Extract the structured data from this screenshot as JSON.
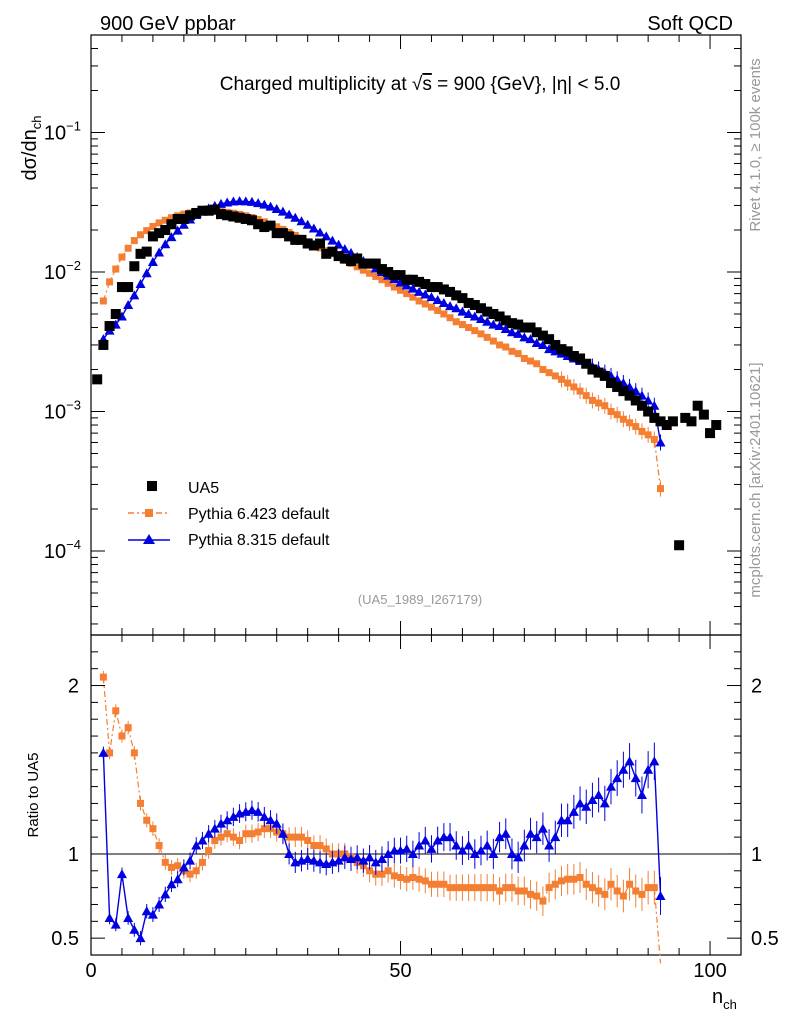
{
  "header": {
    "left": "900 GeV ppbar",
    "right": "Soft QCD"
  },
  "side_labels": {
    "rivet": "Rivet 4.1.0, ≥ 100k events",
    "mcplots": "mcplots.cern.ch [arXiv:2401.10621]"
  },
  "colors": {
    "data": "#000000",
    "pythia6": "#f47f32",
    "pythia8": "#0000e0"
  },
  "chart_data": {
    "type": "scatter",
    "title": "Charged multiplicity at √s = 900 {GeV}, |η| < 5.0",
    "title_parts": {
      "pre": "Charged multiplicity at ",
      "root": "√",
      "s": "s",
      "post": " = 900 {GeV}, |η| < 5.0"
    },
    "analysis_id": "(UA5_1989_I267179)",
    "xlabel": {
      "main": "n",
      "sub": "ch"
    },
    "ylabel": {
      "main": "dσ/dn",
      "sub": "ch"
    },
    "ratio_ylabel": "Ratio to UA5",
    "xlim": [
      0,
      105
    ],
    "ylim_log": [
      2.5e-05,
      0.5
    ],
    "ratio_ylim": [
      0.4,
      2.3
    ],
    "x_ticks": [
      0,
      50,
      100
    ],
    "x_tick_labels": [
      "0",
      "50",
      "100"
    ],
    "y_ticks": [
      {
        "value": 0.1,
        "base": "10",
        "exp": "−1"
      },
      {
        "value": 0.01,
        "base": "10",
        "exp": "−2"
      },
      {
        "value": 0.001,
        "base": "10",
        "exp": "−3"
      },
      {
        "value": 0.0001,
        "base": "10",
        "exp": "−4"
      }
    ],
    "ratio_ticks": [
      {
        "value": 2,
        "label": "2"
      },
      {
        "value": 1,
        "label": "1"
      },
      {
        "value": 0.5,
        "label": "0.5"
      }
    ],
    "legend": [
      {
        "key": "ua5",
        "label": "UA5"
      },
      {
        "key": "pythia6",
        "label": "Pythia 6.423 default"
      },
      {
        "key": "pythia8",
        "label": "Pythia 8.315 default"
      }
    ],
    "ua5": {
      "x": [
        1,
        2,
        3,
        4,
        5,
        6,
        7,
        8,
        9,
        10,
        11,
        12,
        13,
        14,
        15,
        16,
        17,
        18,
        19,
        20,
        21,
        22,
        23,
        24,
        25,
        26,
        27,
        28,
        29,
        30,
        31,
        32,
        33,
        34,
        35,
        36,
        37,
        38,
        39,
        40,
        41,
        42,
        43,
        44,
        45,
        46,
        47,
        48,
        49,
        50,
        51,
        52,
        53,
        54,
        55,
        56,
        57,
        58,
        59,
        60,
        61,
        62,
        63,
        64,
        65,
        66,
        67,
        68,
        69,
        70,
        71,
        72,
        73,
        74,
        75,
        76,
        77,
        78,
        79,
        80,
        81,
        82,
        83,
        84,
        85,
        86,
        87,
        88,
        89,
        90,
        91,
        92,
        93,
        94,
        95,
        96,
        97,
        98,
        99,
        100,
        101
      ],
      "y": [
        0.0017,
        0.003,
        0.0041,
        0.005,
        0.0078,
        0.0078,
        0.011,
        0.0135,
        0.014,
        0.018,
        0.019,
        0.02,
        0.022,
        0.024,
        0.024,
        0.0255,
        0.0265,
        0.0275,
        0.0275,
        0.028,
        0.026,
        0.0255,
        0.025,
        0.0245,
        0.024,
        0.0235,
        0.022,
        0.021,
        0.0215,
        0.019,
        0.019,
        0.018,
        0.017,
        0.017,
        0.016,
        0.0155,
        0.016,
        0.0135,
        0.014,
        0.013,
        0.0125,
        0.012,
        0.0125,
        0.0115,
        0.0115,
        0.0115,
        0.0105,
        0.01,
        0.0095,
        0.0095,
        0.0088,
        0.0088,
        0.0085,
        0.0082,
        0.0078,
        0.0078,
        0.0075,
        0.0072,
        0.0068,
        0.0065,
        0.006,
        0.0058,
        0.0055,
        0.0052,
        0.005,
        0.0048,
        0.0045,
        0.0043,
        0.0042,
        0.004,
        0.004,
        0.0037,
        0.0035,
        0.0033,
        0.003,
        0.0028,
        0.0027,
        0.0025,
        0.0024,
        0.0022,
        0.002,
        0.0019,
        0.0018,
        0.0016,
        0.0015,
        0.0014,
        0.0013,
        0.0012,
        0.0011,
        0.001,
        0.0009,
        0.00085,
        0.0008,
        0.00085,
        0.00011,
        0.0009,
        0.00085,
        0.0011,
        0.00095,
        0.0007,
        0.0008
      ]
    },
    "pythia6": {
      "x": [
        2,
        3,
        4,
        5,
        6,
        7,
        8,
        9,
        10,
        11,
        12,
        13,
        14,
        15,
        16,
        17,
        18,
        19,
        20,
        21,
        22,
        23,
        24,
        25,
        26,
        27,
        28,
        29,
        30,
        31,
        32,
        33,
        34,
        35,
        36,
        37,
        38,
        39,
        40,
        41,
        42,
        43,
        44,
        45,
        46,
        47,
        48,
        49,
        50,
        51,
        52,
        53,
        54,
        55,
        56,
        57,
        58,
        59,
        60,
        61,
        62,
        63,
        64,
        65,
        66,
        67,
        68,
        69,
        70,
        71,
        72,
        73,
        74,
        75,
        76,
        77,
        78,
        79,
        80,
        81,
        82,
        83,
        84,
        85,
        86,
        87,
        88,
        89,
        90,
        91,
        92
      ],
      "y": [
        0.0062,
        0.0085,
        0.0105,
        0.0128,
        0.0148,
        0.0168,
        0.0185,
        0.0198,
        0.0212,
        0.0225,
        0.0235,
        0.0245,
        0.0253,
        0.026,
        0.0265,
        0.0268,
        0.0271,
        0.0272,
        0.0272,
        0.0271,
        0.0268,
        0.0264,
        0.0259,
        0.0253,
        0.0246,
        0.0238,
        0.0229,
        0.022,
        0.0211,
        0.0202,
        0.0192,
        0.0183,
        0.0174,
        0.0165,
        0.0157,
        0.0149,
        0.0142,
        0.0135,
        0.0128,
        0.0121,
        0.0115,
        0.0109,
        0.0103,
        0.0098,
        0.0093,
        0.0088,
        0.0083,
        0.0078,
        0.0074,
        0.007,
        0.0066,
        0.0062,
        0.0059,
        0.0056,
        0.0053,
        0.005,
        0.0047,
        0.0044,
        0.0042,
        0.004,
        0.0038,
        0.0036,
        0.0034,
        0.0032,
        0.003,
        0.0029,
        0.0027,
        0.0026,
        0.0024,
        0.0023,
        0.0022,
        0.002,
        0.0019,
        0.0018,
        0.0017,
        0.0016,
        0.0015,
        0.0014,
        0.0013,
        0.0012,
        0.00115,
        0.0011,
        0.001,
        0.00095,
        0.00088,
        0.00083,
        0.00078,
        0.00072,
        0.00068,
        0.00063,
        0.00028
      ]
    },
    "pythia8": {
      "x": [
        2,
        3,
        4,
        5,
        6,
        7,
        8,
        9,
        10,
        11,
        12,
        13,
        14,
        15,
        16,
        17,
        18,
        19,
        20,
        21,
        22,
        23,
        24,
        25,
        26,
        27,
        28,
        29,
        30,
        31,
        32,
        33,
        34,
        35,
        36,
        37,
        38,
        39,
        40,
        41,
        42,
        43,
        44,
        45,
        46,
        47,
        48,
        49,
        50,
        51,
        52,
        53,
        54,
        55,
        56,
        57,
        58,
        59,
        60,
        61,
        62,
        63,
        64,
        65,
        66,
        67,
        68,
        69,
        70,
        71,
        72,
        73,
        74,
        75,
        76,
        77,
        78,
        79,
        80,
        81,
        82,
        83,
        84,
        85,
        86,
        87,
        88,
        89,
        90,
        91,
        92
      ],
      "y": [
        0.0033,
        0.0038,
        0.0042,
        0.0048,
        0.0058,
        0.0068,
        0.0082,
        0.0098,
        0.0118,
        0.0138,
        0.0158,
        0.0178,
        0.0198,
        0.0218,
        0.0238,
        0.0256,
        0.0272,
        0.0286,
        0.0298,
        0.0308,
        0.0315,
        0.032,
        0.0322,
        0.0321,
        0.0318,
        0.0312,
        0.0304,
        0.0294,
        0.0283,
        0.0271,
        0.0258,
        0.0245,
        0.0231,
        0.0218,
        0.0205,
        0.0192,
        0.018,
        0.0168,
        0.0157,
        0.0146,
        0.0137,
        0.0128,
        0.012,
        0.0113,
        0.0106,
        0.01,
        0.0094,
        0.0089,
        0.0084,
        0.008,
        0.0076,
        0.0072,
        0.0069,
        0.0066,
        0.0063,
        0.006,
        0.0057,
        0.0055,
        0.0052,
        0.005,
        0.0048,
        0.0046,
        0.0044,
        0.0042,
        0.0041,
        0.0039,
        0.0037,
        0.0036,
        0.0034,
        0.0033,
        0.0031,
        0.003,
        0.0028,
        0.0027,
        0.0026,
        0.0025,
        0.0024,
        0.0023,
        0.0022,
        0.0021,
        0.002,
        0.0019,
        0.0018,
        0.0017,
        0.0016,
        0.0015,
        0.0014,
        0.0013,
        0.0012,
        0.0011,
        0.0006
      ]
    },
    "ratio_pythia6": [
      2.05,
      1.6,
      1.85,
      1.7,
      1.75,
      1.6,
      1.3,
      1.2,
      1.15,
      1.05,
      0.95,
      0.92,
      0.93,
      0.9,
      0.88,
      0.9,
      0.95,
      1.02,
      1.08,
      1.1,
      1.12,
      1.1,
      1.08,
      1.12,
      1.12,
      1.13,
      1.15,
      1.15,
      1.13,
      1.12,
      1.1,
      1.1,
      1.1,
      1.08,
      1.05,
      1.05,
      1.03,
      1.0,
      1.0,
      1.0,
      0.98,
      0.95,
      0.93,
      0.9,
      0.88,
      0.88,
      0.9,
      0.87,
      0.86,
      0.85,
      0.86,
      0.85,
      0.84,
      0.82,
      0.82,
      0.82,
      0.8,
      0.8,
      0.8,
      0.8,
      0.8,
      0.8,
      0.8,
      0.8,
      0.78,
      0.8,
      0.8,
      0.78,
      0.78,
      0.76,
      0.75,
      0.72,
      0.8,
      0.82,
      0.84,
      0.85,
      0.85,
      0.86,
      0.82,
      0.8,
      0.78,
      0.76,
      0.82,
      0.78,
      0.75,
      0.82,
      0.78,
      0.76,
      0.8,
      0.8,
      0.35
    ],
    "ratio_pythia8": [
      1.6,
      0.62,
      0.58,
      0.88,
      0.62,
      0.55,
      0.5,
      0.66,
      0.64,
      0.7,
      0.76,
      0.82,
      0.85,
      0.92,
      0.96,
      1.05,
      1.08,
      1.12,
      1.15,
      1.18,
      1.2,
      1.22,
      1.24,
      1.25,
      1.26,
      1.25,
      1.22,
      1.2,
      1.18,
      1.12,
      1.0,
      0.95,
      0.96,
      0.97,
      0.96,
      0.95,
      0.94,
      0.95,
      0.96,
      0.98,
      0.97,
      0.98,
      0.96,
      0.98,
      0.95,
      0.97,
      1.0,
      1.02,
      1.02,
      1.03,
      1.0,
      1.05,
      1.08,
      1.03,
      1.08,
      1.1,
      1.1,
      1.05,
      1.02,
      1.05,
      1.0,
      1.02,
      1.05,
      1.0,
      1.1,
      1.12,
      1.0,
      0.98,
      1.05,
      1.12,
      1.1,
      1.15,
      1.05,
      1.1,
      1.2,
      1.2,
      1.25,
      1.3,
      1.28,
      1.32,
      1.35,
      1.3,
      1.4,
      1.45,
      1.5,
      1.55,
      1.45,
      1.35,
      1.5,
      1.55,
      0.75
    ]
  }
}
